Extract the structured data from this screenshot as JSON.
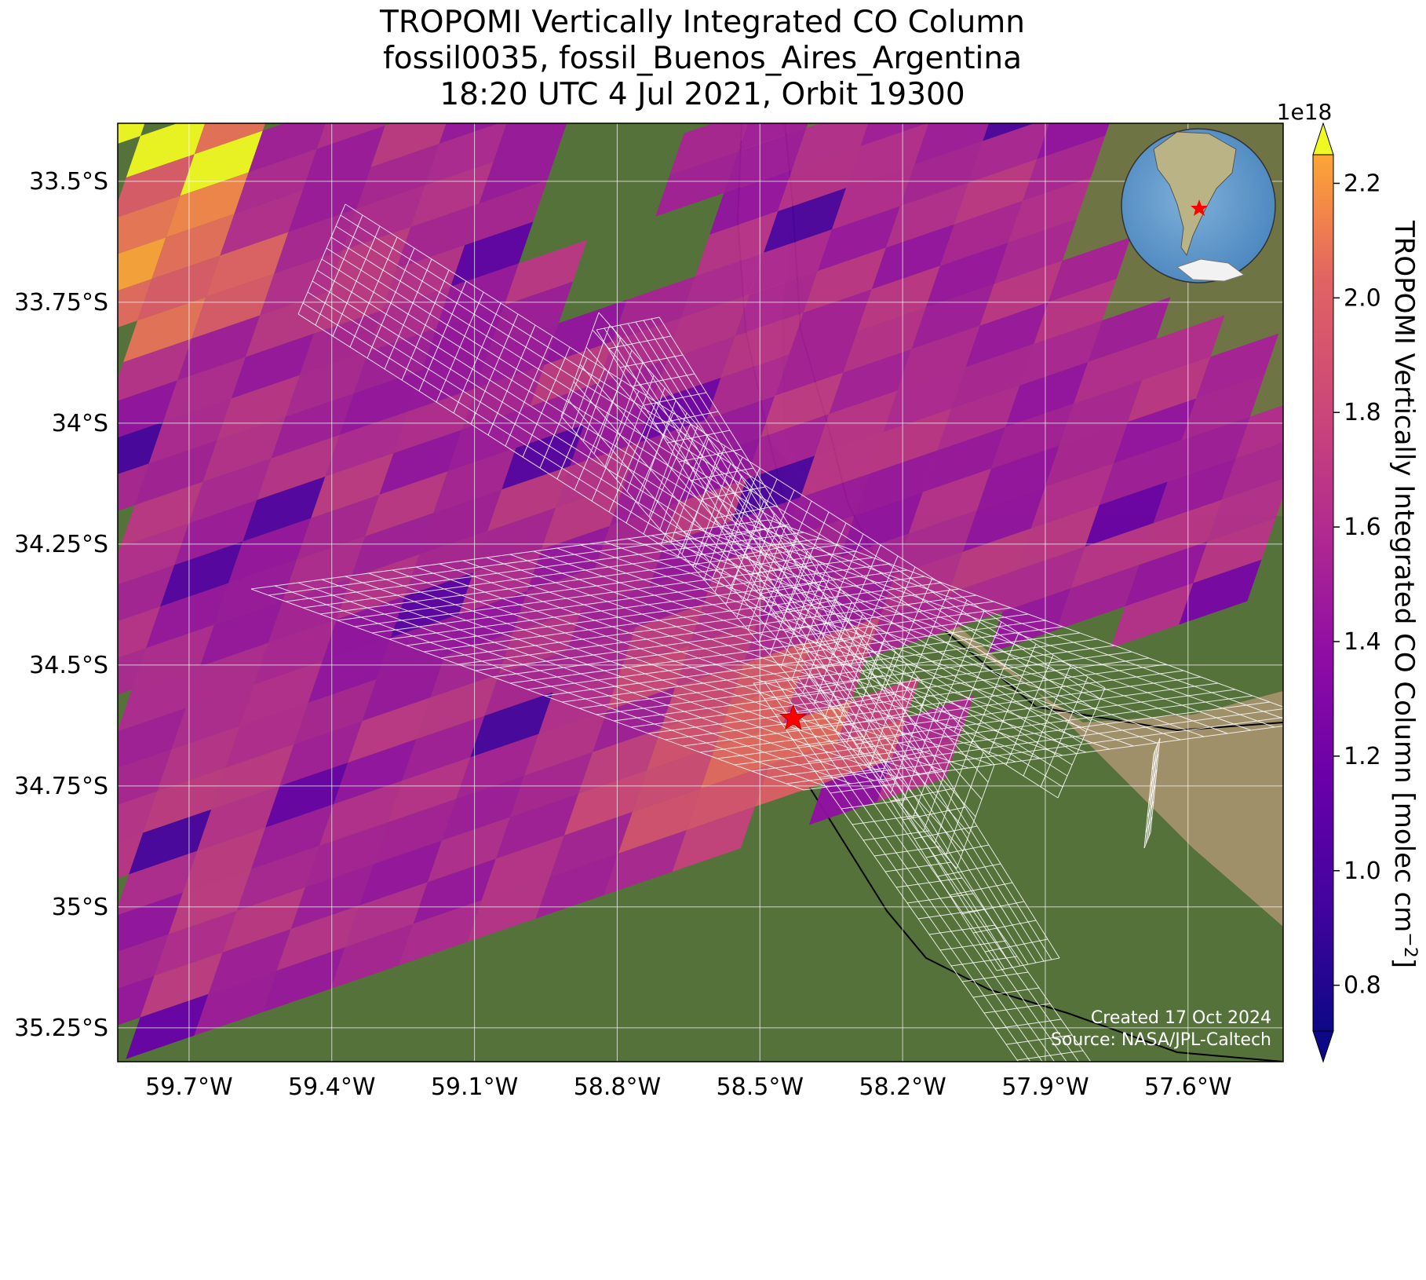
{
  "title_lines": [
    "TROPOMI Vertically Integrated CO Column",
    "fossil0035, fossil_Buenos_Aires_Argentina",
    "18:20 UTC 4 Jul 2021, Orbit 19300"
  ],
  "map": {
    "lon_range": [
      -59.85,
      -57.4
    ],
    "lat_range": [
      -35.32,
      -33.38
    ],
    "lon_ticks": [
      {
        "value": -59.7,
        "label": "59.7°W"
      },
      {
        "value": -59.4,
        "label": "59.4°W"
      },
      {
        "value": -59.1,
        "label": "59.1°W"
      },
      {
        "value": -58.8,
        "label": "58.8°W"
      },
      {
        "value": -58.5,
        "label": "58.5°W"
      },
      {
        "value": -58.2,
        "label": "58.2°W"
      },
      {
        "value": -57.9,
        "label": "57.9°W"
      },
      {
        "value": -57.6,
        "label": "57.6°W"
      }
    ],
    "lat_ticks": [
      {
        "value": -33.5,
        "label": "33.5°S"
      },
      {
        "value": -33.75,
        "label": "33.75°S"
      },
      {
        "value": -34.0,
        "label": "34°S"
      },
      {
        "value": -34.25,
        "label": "34.25°S"
      },
      {
        "value": -34.5,
        "label": "34.5°S"
      },
      {
        "value": -34.75,
        "label": "34.75°S"
      },
      {
        "value": -35.0,
        "label": "35°S"
      },
      {
        "value": -35.25,
        "label": "35.25°S"
      }
    ],
    "gridlines": true,
    "basemap": "satellite imagery",
    "target": {
      "name": "star-marker",
      "lon": -58.43,
      "lat": -34.61,
      "color": "#ff0000"
    },
    "inset": "globe-locator-inset",
    "credit_lines": [
      "Created 17 Oct 2024",
      "Source: NASA/JPL-Caltech"
    ]
  },
  "colorbar": {
    "label": "TROPOMI Vertically Integrated CO Column [molec cm",
    "label_sup": "−2",
    "label_tail": "]",
    "exponent": "1e18",
    "range": [
      0.72,
      2.25
    ],
    "colormap": "plasma",
    "extend": "both",
    "ticks": [
      {
        "value": 0.8,
        "label": "0.8"
      },
      {
        "value": 1.0,
        "label": "1.0"
      },
      {
        "value": 1.2,
        "label": "1.2"
      },
      {
        "value": 1.4,
        "label": "1.4"
      },
      {
        "value": 1.6,
        "label": "1.6"
      },
      {
        "value": 1.8,
        "label": "1.8"
      },
      {
        "value": 2.0,
        "label": "2.0"
      },
      {
        "value": 2.2,
        "label": "2.2"
      }
    ]
  }
}
